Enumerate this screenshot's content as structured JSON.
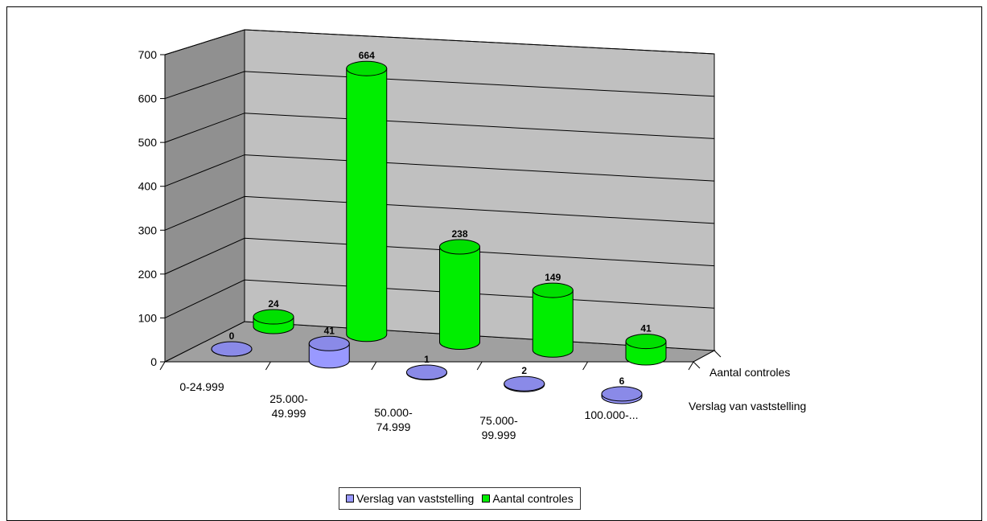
{
  "chart_data": {
    "type": "bar",
    "style": "3d-cylinder",
    "categories": [
      "0-24.999",
      "25.000-\n49.999",
      "50.000-\n74.999",
      "75.000-\n99.999",
      "100.000-..."
    ],
    "series": [
      {
        "name": "Verslag van vaststelling",
        "values": [
          0,
          41,
          1,
          2,
          6
        ],
        "color": "#9999ff"
      },
      {
        "name": "Aantal controles",
        "values": [
          24,
          664,
          238,
          149,
          41
        ],
        "color": "#00ee00"
      }
    ],
    "yticks": [
      0,
      100,
      200,
      300,
      400,
      500,
      600,
      700
    ],
    "ylim": [
      0,
      700
    ],
    "grid": true,
    "legend_position": "bottom",
    "title": "",
    "xlabel": "",
    "ylabel": ""
  },
  "legend": {
    "items": [
      {
        "label": "Verslag van vaststelling",
        "color": "#9999ff"
      },
      {
        "label": "Aantal controles",
        "color": "#00ee00"
      }
    ]
  }
}
